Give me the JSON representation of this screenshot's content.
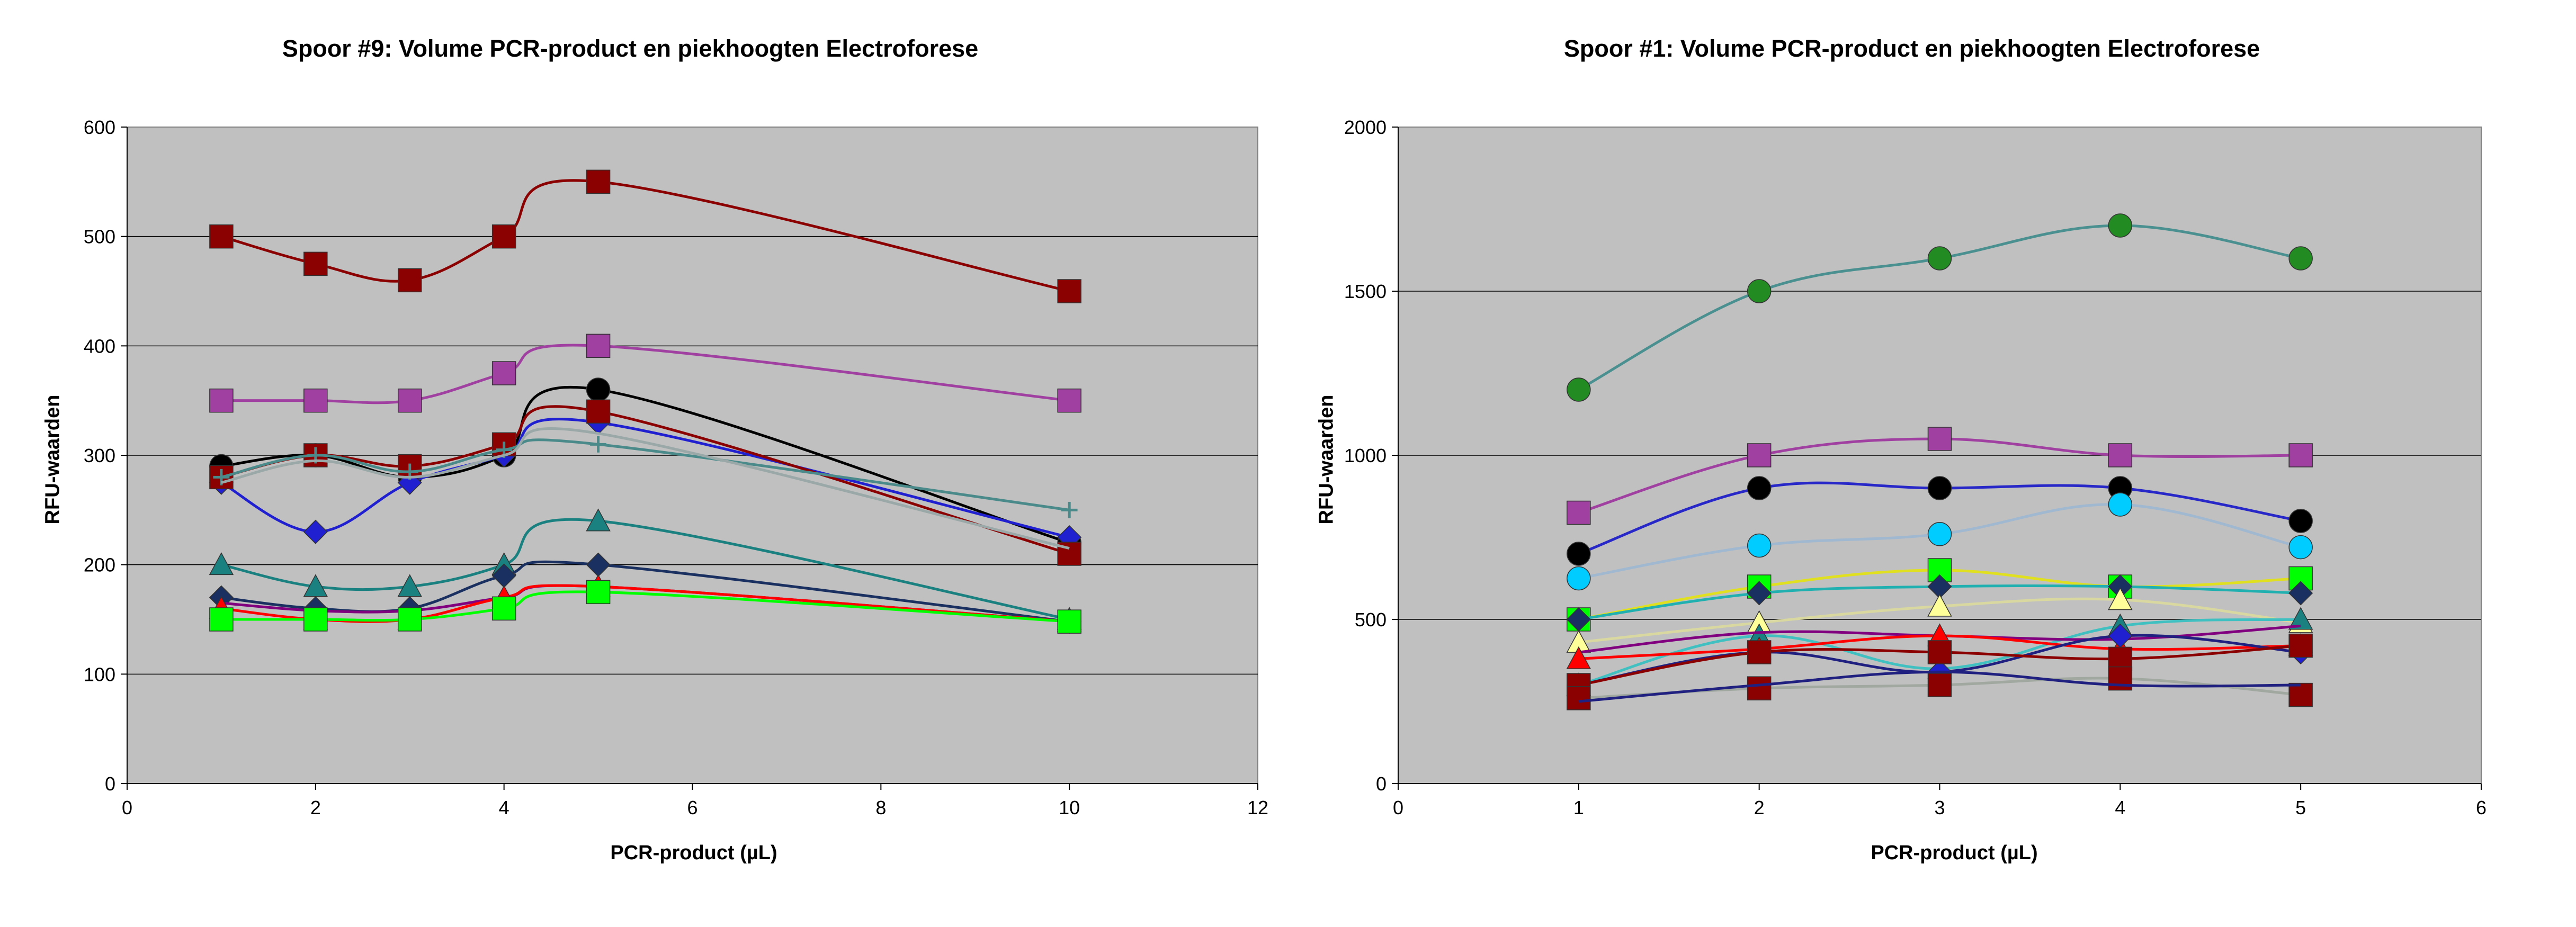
{
  "chart_data": [
    {
      "type": "line",
      "title": "Spoor #9: Volume PCR-product en piekhoogten Electroforese",
      "xlabel": "PCR-product (µL)",
      "ylabel": "RFU-waarden",
      "xlim": [
        0,
        12
      ],
      "ylim": [
        0,
        600
      ],
      "x_ticks": [
        "0",
        "2",
        "4",
        "6",
        "8",
        "10",
        "12"
      ],
      "y_ticks": [
        "0",
        "100",
        "200",
        "300",
        "400",
        "500",
        "600"
      ],
      "grid": "horizontal",
      "plot_background": "#c0c0c0",
      "x": [
        1,
        2,
        3,
        4,
        5,
        10
      ],
      "series": [
        {
          "color": "#8b0000",
          "marker": "square",
          "values": [
            500,
            475,
            460,
            500,
            550,
            450
          ]
        },
        {
          "color": "#a040a0",
          "marker": "square",
          "values": [
            350,
            350,
            350,
            375,
            400,
            350
          ]
        },
        {
          "color": "#000000",
          "marker": "circle",
          "values": [
            290,
            300,
            280,
            300,
            360,
            220
          ]
        },
        {
          "color": "#2020d0",
          "marker": "diamond",
          "values": [
            275,
            230,
            275,
            300,
            330,
            225
          ]
        },
        {
          "color": "#8b0000",
          "marker": "square",
          "values": [
            280,
            300,
            290,
            310,
            340,
            210
          ]
        },
        {
          "color": "#4a8a8a",
          "marker": "plus",
          "values": [
            280,
            300,
            285,
            305,
            310,
            250
          ]
        },
        {
          "color": "#9aa8a8",
          "marker": "none",
          "values": [
            275,
            295,
            280,
            300,
            320,
            215
          ]
        },
        {
          "color": "#1a8080",
          "marker": "triangle",
          "values": [
            200,
            180,
            180,
            200,
            240,
            150
          ]
        },
        {
          "color": "#1a3060",
          "marker": "diamond",
          "values": [
            170,
            160,
            160,
            190,
            200,
            148
          ]
        },
        {
          "color": "#800080",
          "marker": "none",
          "values": [
            165,
            158,
            158,
            170,
            180,
            148
          ]
        },
        {
          "color": "#ff0000",
          "marker": "triangle",
          "values": [
            160,
            150,
            150,
            170,
            180,
            148
          ]
        },
        {
          "color": "#00ff00",
          "marker": "square",
          "values": [
            150,
            150,
            150,
            160,
            175,
            148
          ]
        }
      ]
    },
    {
      "type": "line",
      "title": "Spoor #1: Volume PCR-product en piekhoogten Electroforese",
      "xlabel": "PCR-product (µL)",
      "ylabel": "RFU-waarden",
      "xlim": [
        0,
        6
      ],
      "ylim": [
        0,
        2000
      ],
      "x_ticks": [
        "0",
        "1",
        "2",
        "3",
        "4",
        "5",
        "6"
      ],
      "y_ticks": [
        "0",
        "500",
        "1000",
        "1500",
        "2000"
      ],
      "grid": "horizontal",
      "plot_background": "#c0c0c0",
      "x": [
        1,
        2,
        3,
        4,
        5
      ],
      "series": [
        {
          "color": "#228b22",
          "line_color": "#4a9090",
          "marker": "circle",
          "values": [
            1200,
            1500,
            1600,
            1700,
            1600
          ]
        },
        {
          "color": "#a040a0",
          "marker": "square",
          "values": [
            825,
            1000,
            1050,
            1000,
            1000
          ]
        },
        {
          "color": "#000000",
          "line_color": "#2828c8",
          "marker": "circle",
          "values": [
            700,
            900,
            900,
            900,
            800
          ]
        },
        {
          "color": "#00ccff",
          "line_color": "#a0b8d0",
          "marker": "circle",
          "values": [
            625,
            725,
            760,
            850,
            720
          ]
        },
        {
          "color": "#00ff00",
          "line_color": "#e0e020",
          "marker": "square",
          "values": [
            500,
            600,
            650,
            600,
            625
          ]
        },
        {
          "color": "#1a3060",
          "line_color": "#20b0b0",
          "marker": "diamond",
          "values": [
            500,
            580,
            600,
            600,
            580
          ]
        },
        {
          "color": "#ffff99",
          "line_color": "#d8d8a0",
          "marker": "triangle",
          "values": [
            430,
            490,
            540,
            560,
            490
          ]
        },
        {
          "color": "#1a8080",
          "line_color": "#40c0c0",
          "marker": "triangle",
          "values": [
            300,
            450,
            350,
            480,
            500
          ]
        },
        {
          "color": "#800080",
          "marker": "none",
          "values": [
            400,
            460,
            450,
            440,
            480
          ]
        },
        {
          "color": "#ff0000",
          "marker": "triangle",
          "values": [
            380,
            410,
            450,
            410,
            420
          ]
        },
        {
          "color": "#2020d0",
          "line_color": "#202080",
          "marker": "diamond",
          "values": [
            300,
            400,
            340,
            450,
            400
          ]
        },
        {
          "color": "#8b0000",
          "marker": "square",
          "values": [
            300,
            400,
            400,
            380,
            420
          ]
        },
        {
          "color": "#8b0000",
          "line_color": "#a0a8a0",
          "marker": "square",
          "values": [
            260,
            290,
            300,
            320,
            270
          ]
        },
        {
          "color": "#1a3060",
          "line_color": "#202080",
          "marker": "none",
          "values": [
            250,
            300,
            340,
            300,
            300
          ]
        }
      ]
    }
  ]
}
